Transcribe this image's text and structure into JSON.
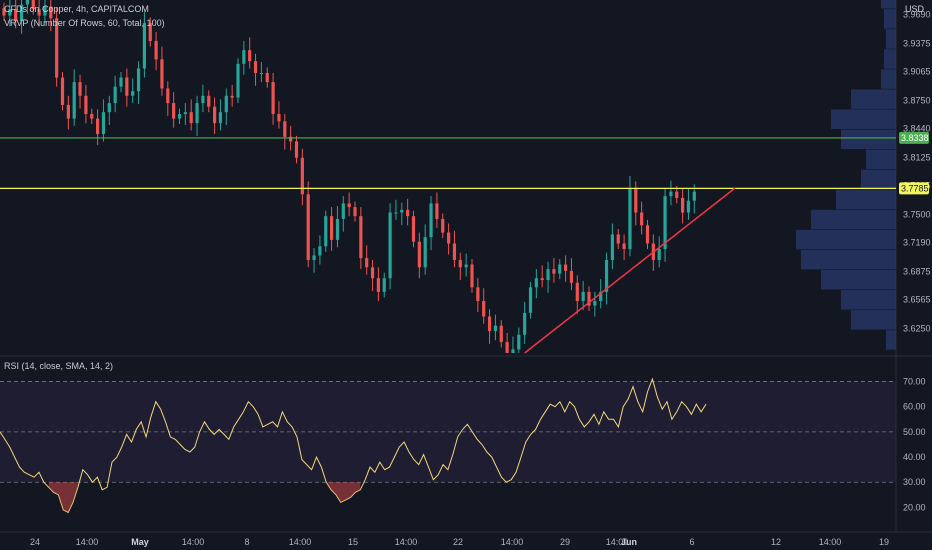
{
  "header": {
    "symbol_line": "CFDs on Copper, 4h, CAPITALCOM",
    "indicator_line": "VRVP (Number Of Rows, 60, Total, 100)",
    "rsi_line": "RSI (14, close, SMA, 14, 2)",
    "currency": "USD"
  },
  "colors": {
    "background": "#131722",
    "up": "#26a69a",
    "down": "#ef5350",
    "green_line": "#4caf50",
    "yellow_line": "#f2f55c",
    "trend_line": "#f23645",
    "rsi_line": "#f2d67a",
    "volume_profile": "#2a3a6e"
  },
  "price_axis": {
    "labels": [
      "3.9690",
      "3.9375",
      "3.9065",
      "3.8750",
      "3.8440",
      "3.8125",
      "3.7815",
      "3.7500",
      "3.7190",
      "3.6875",
      "3.6565",
      "3.6250"
    ],
    "badges": [
      {
        "label": "3.8338",
        "color": "#4caf50"
      },
      {
        "label": "3.7785",
        "color": "#f2f55c"
      }
    ]
  },
  "rsi_axis": {
    "labels": [
      "70.00",
      "60.00",
      "50.00",
      "40.00",
      "30.00",
      "20.00"
    ]
  },
  "time_axis": {
    "labels": [
      "24",
      "14:00",
      "May",
      "14:00",
      "8",
      "14:00",
      "15",
      "14:00",
      "22",
      "14:00",
      "29",
      "14:00",
      "Jun",
      "6",
      "12",
      "14:00",
      "19"
    ]
  },
  "chart_data": [
    {
      "type": "candlestick",
      "title": "CFDs on Copper, 4h, CAPITALCOM",
      "ylim": [
        3.598,
        3.985
      ],
      "horizontal_lines": [
        {
          "value": 3.8338,
          "color": "#4caf50"
        },
        {
          "value": 3.7785,
          "color": "#f2f55c"
        }
      ],
      "trend_line": {
        "from": {
          "bar": 89,
          "value": 3.598
        },
        "to": {
          "bar": 125,
          "value": 3.779
        }
      },
      "volume_profile": {
        "price_rows": [
          3.612,
          3.634,
          3.656,
          3.678,
          3.7,
          3.722,
          3.744,
          3.766,
          3.788,
          3.81,
          3.832,
          3.854,
          3.876,
          3.898,
          3.92,
          3.942,
          3.964,
          3.986
        ],
        "relative_volume": [
          0.1,
          0.45,
          0.55,
          0.75,
          0.95,
          1.0,
          0.85,
          0.6,
          0.35,
          0.3,
          0.55,
          0.65,
          0.45,
          0.15,
          0.12,
          0.1,
          0.12,
          0.15
        ]
      },
      "closes": [
        3.968,
        3.975,
        3.962,
        3.98,
        3.99,
        3.975,
        3.968,
        3.978,
        3.965,
        3.9,
        3.87,
        3.855,
        3.895,
        3.88,
        3.86,
        3.855,
        3.838,
        3.862,
        3.872,
        3.89,
        3.9,
        3.88,
        3.885,
        3.91,
        3.96,
        3.94,
        3.92,
        3.888,
        3.872,
        3.855,
        3.86,
        3.862,
        3.85,
        3.872,
        3.88,
        3.868,
        3.85,
        3.862,
        3.88,
        3.878,
        3.915,
        3.93,
        3.918,
        3.905,
        3.905,
        3.895,
        3.86,
        3.852,
        3.835,
        3.83,
        3.812,
        3.772,
        3.7,
        3.705,
        3.715,
        3.748,
        3.722,
        3.745,
        3.762,
        3.758,
        3.748,
        3.702,
        3.692,
        3.68,
        3.665,
        3.68,
        3.752,
        3.752,
        3.755,
        3.748,
        3.72,
        3.692,
        3.725,
        3.762,
        3.745,
        3.73,
        3.718,
        3.7,
        3.692,
        3.695,
        3.67,
        3.655,
        3.638,
        3.622,
        3.628,
        3.61,
        3.598,
        3.602,
        3.618,
        3.642,
        3.67,
        3.68,
        3.678,
        3.69,
        3.685,
        3.695,
        3.688,
        3.675,
        3.655,
        3.665,
        3.65,
        3.655,
        3.665,
        3.7,
        3.728,
        3.718,
        3.712,
        3.778,
        3.752,
        3.738,
        3.718,
        3.7,
        3.712,
        3.77,
        3.775,
        3.768,
        3.752,
        3.765,
        3.775
      ],
      "rsi": [
        50,
        47,
        44,
        40,
        36,
        34,
        33,
        32,
        34,
        30,
        28,
        26,
        25,
        19,
        18,
        22,
        28,
        35,
        33,
        30,
        32,
        27,
        28,
        38,
        40,
        44,
        49,
        46,
        51,
        54,
        48,
        56,
        62,
        59,
        54,
        48,
        47,
        45,
        43,
        42,
        44,
        50,
        54,
        51,
        49,
        51,
        49,
        47,
        52,
        55,
        58,
        62,
        60,
        57,
        52,
        53,
        54,
        52,
        58,
        54,
        52,
        48,
        39,
        37,
        35,
        40,
        36,
        30,
        27,
        25,
        22,
        23,
        24,
        26,
        27,
        31,
        36,
        34,
        38,
        35,
        36,
        40,
        44,
        46,
        42,
        39,
        37,
        41,
        36,
        31,
        33,
        37,
        35,
        41,
        48,
        51,
        53,
        50,
        47,
        45,
        42,
        40,
        36,
        32,
        30,
        31,
        34,
        40,
        46,
        49,
        51,
        55,
        58,
        61,
        60,
        62,
        58,
        62,
        60,
        55,
        52,
        54,
        57,
        53,
        58,
        55,
        55,
        52,
        60,
        63,
        68,
        62,
        58,
        66,
        71,
        64,
        59,
        62,
        55,
        58,
        62,
        60,
        57,
        61,
        58,
        61
      ],
      "rsi_levels": [
        70,
        50,
        30
      ],
      "rsi_ylim": [
        15,
        73
      ]
    }
  ]
}
